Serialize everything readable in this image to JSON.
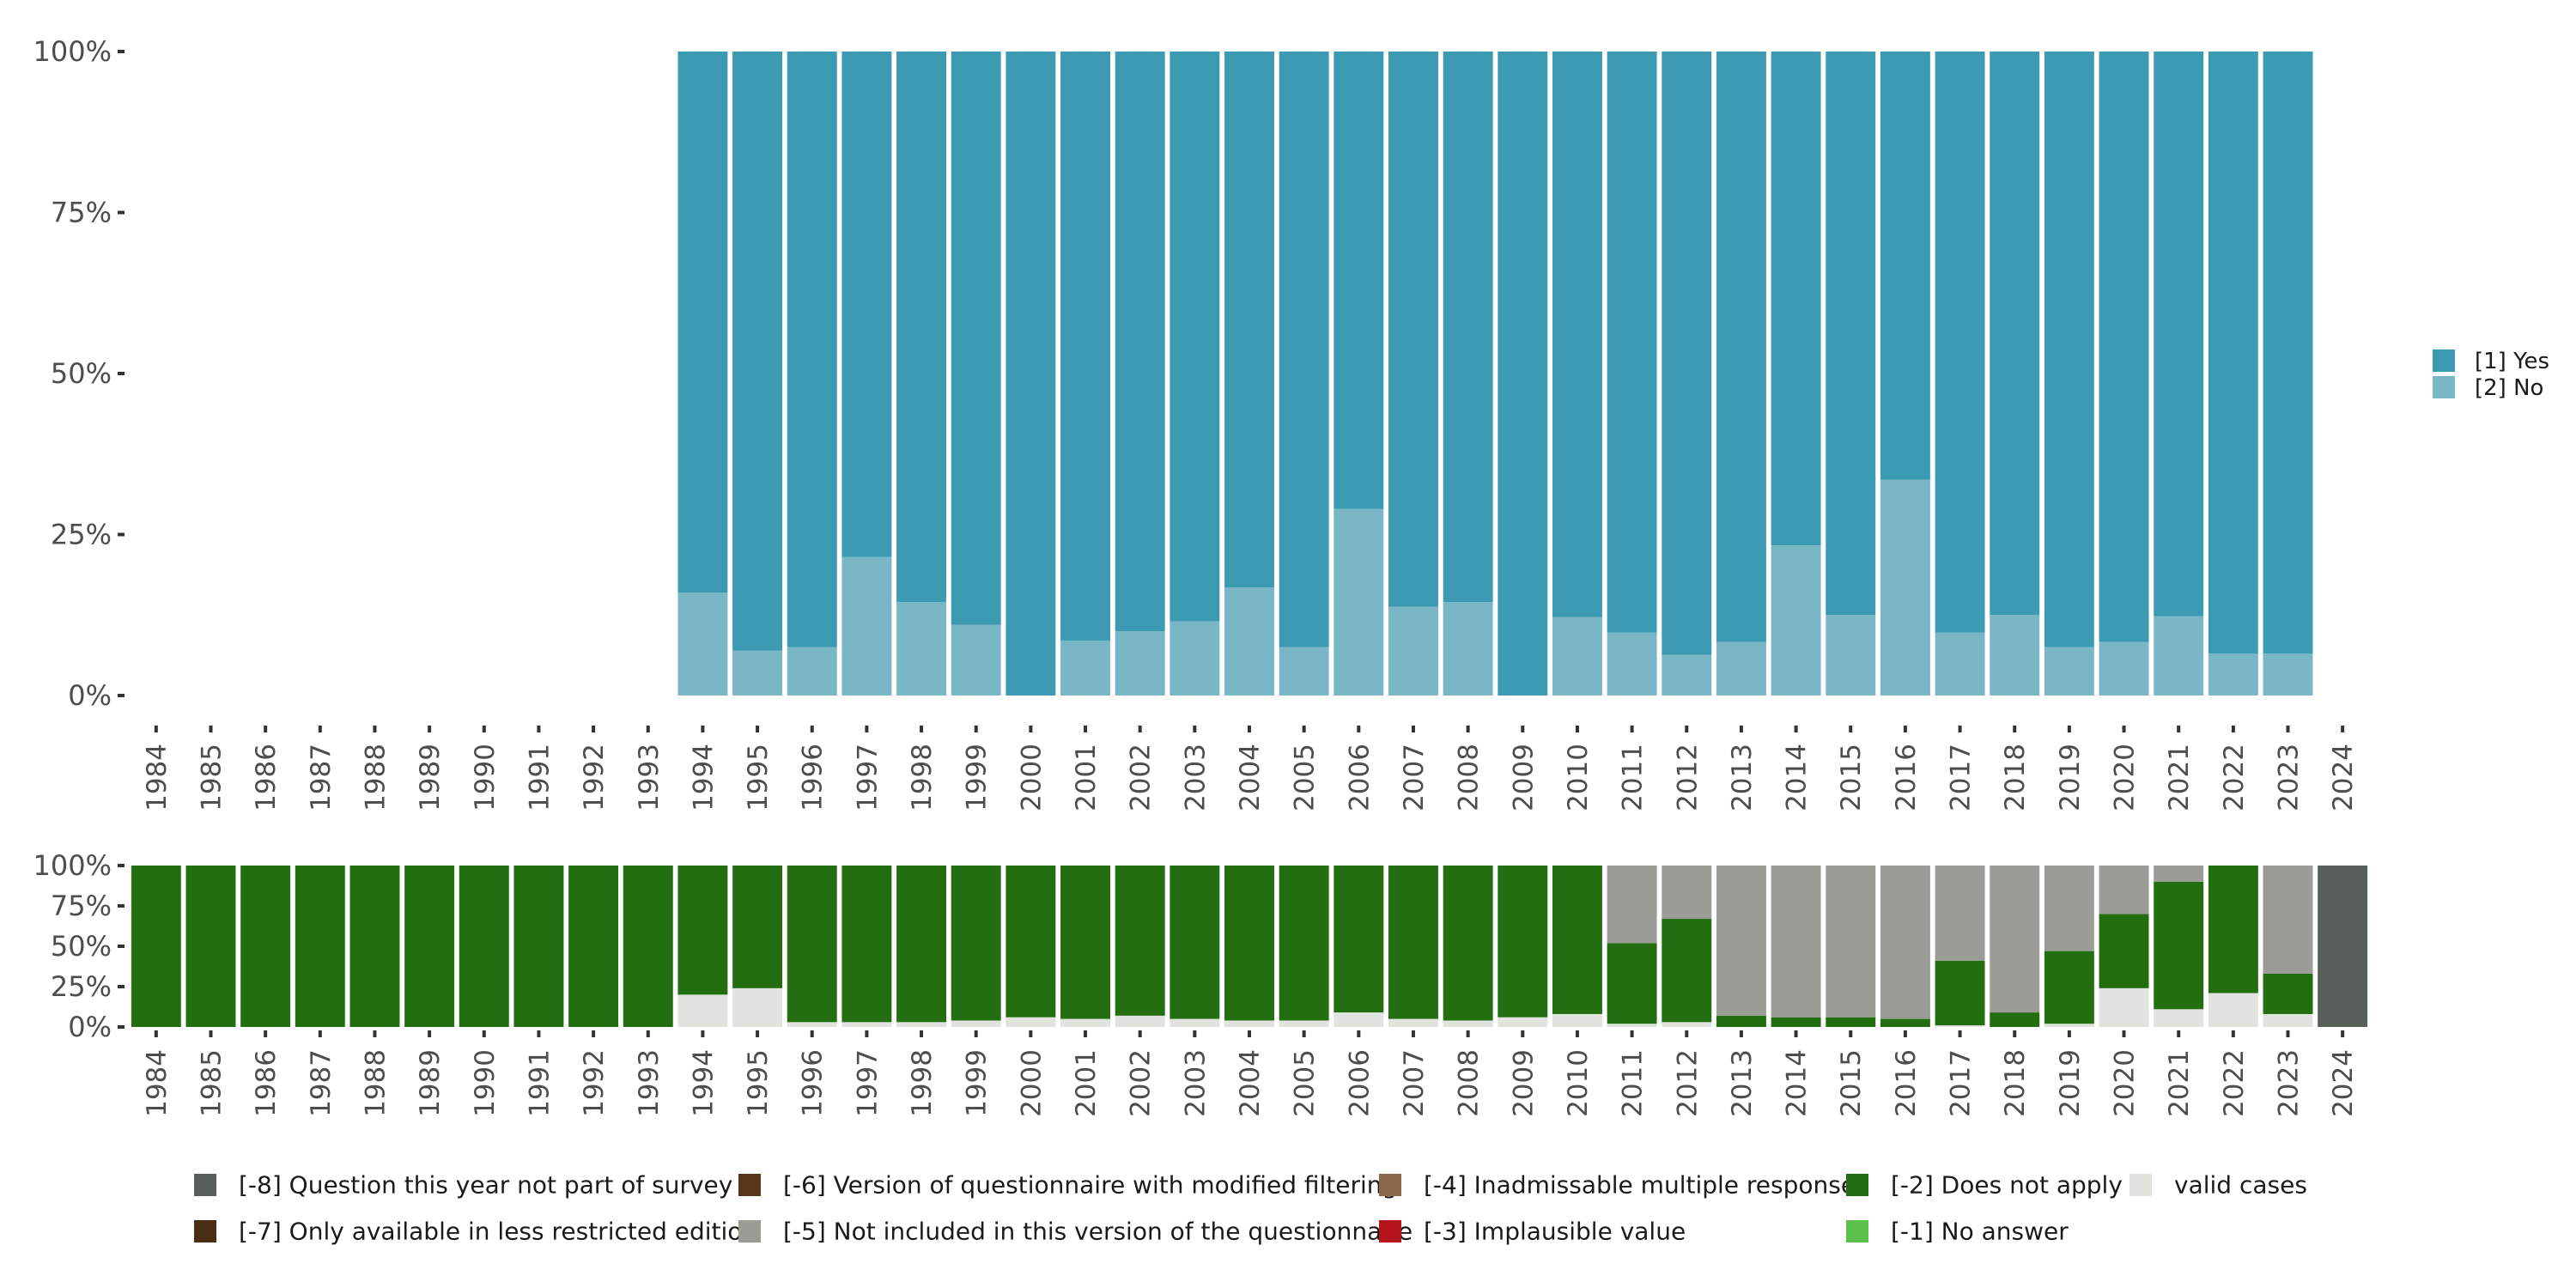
{
  "chart_data": [
    {
      "type": "bar",
      "stacked": true,
      "percent": true,
      "title": "",
      "xlabel": "",
      "ylabel": "",
      "ylim": [
        0,
        100
      ],
      "y_ticks": [
        "0%",
        "25%",
        "50%",
        "75%",
        "100%"
      ],
      "categories": [
        "1984",
        "1985",
        "1986",
        "1987",
        "1988",
        "1989",
        "1990",
        "1991",
        "1992",
        "1993",
        "1994",
        "1995",
        "1996",
        "1997",
        "1998",
        "1999",
        "2000",
        "2001",
        "2002",
        "2003",
        "2004",
        "2005",
        "2006",
        "2007",
        "2008",
        "2009",
        "2010",
        "2011",
        "2012",
        "2013",
        "2014",
        "2015",
        "2016",
        "2017",
        "2018",
        "2019",
        "2020",
        "2021",
        "2022",
        "2023",
        "2024"
      ],
      "series": [
        {
          "name": "[2] No",
          "color": "#79b7c6",
          "values": [
            null,
            null,
            null,
            null,
            null,
            null,
            null,
            null,
            null,
            null,
            16,
            7,
            7.5,
            21.5,
            14.5,
            11,
            0,
            8.5,
            10,
            11.5,
            16.8,
            7.5,
            29,
            13.8,
            14.5,
            0,
            12.2,
            9.8,
            6.3,
            8.3,
            23.3,
            12.5,
            33.5,
            9.8,
            12.5,
            7.5,
            8.3,
            12.3,
            6.5,
            6.5,
            null
          ]
        },
        {
          "name": "[1] Yes",
          "color": "#3d9ab3",
          "values": [
            null,
            null,
            null,
            null,
            null,
            null,
            null,
            null,
            null,
            null,
            84,
            93,
            92.5,
            78.5,
            85.5,
            89,
            100,
            91.5,
            90,
            88.5,
            83.2,
            92.5,
            71,
            86.2,
            85.5,
            100,
            87.8,
            90.2,
            93.7,
            91.7,
            76.7,
            87.5,
            66.5,
            90.2,
            87.5,
            92.5,
            91.7,
            87.7,
            93.5,
            93.5,
            null
          ]
        }
      ],
      "legend": {
        "position": "right",
        "entries": [
          "[1] Yes",
          "[2] No"
        ]
      }
    },
    {
      "type": "bar",
      "stacked": true,
      "percent": true,
      "title": "",
      "xlabel": "",
      "ylabel": "",
      "ylim": [
        0,
        100
      ],
      "y_ticks": [
        "0%",
        "25%",
        "50%",
        "75%",
        "100%"
      ],
      "categories": [
        "1984",
        "1985",
        "1986",
        "1987",
        "1988",
        "1989",
        "1990",
        "1991",
        "1992",
        "1993",
        "1994",
        "1995",
        "1996",
        "1997",
        "1998",
        "1999",
        "2000",
        "2001",
        "2002",
        "2003",
        "2004",
        "2005",
        "2006",
        "2007",
        "2008",
        "2009",
        "2010",
        "2011",
        "2012",
        "2013",
        "2014",
        "2015",
        "2016",
        "2017",
        "2018",
        "2019",
        "2020",
        "2021",
        "2022",
        "2023",
        "2024"
      ],
      "series": [
        {
          "name": "valid cases",
          "color": "#e0e3de",
          "values": [
            0,
            0,
            0,
            0,
            0,
            0,
            0,
            0,
            0,
            0,
            20,
            24,
            3,
            3,
            3,
            4,
            6,
            5,
            7,
            5,
            4,
            4,
            9,
            5,
            4,
            6,
            8,
            2,
            3,
            0,
            0,
            0,
            0,
            1,
            0,
            2,
            24,
            11,
            21,
            8,
            0
          ]
        },
        {
          "name": "[-2] Does not apply",
          "color": "#226e10",
          "values": [
            100,
            100,
            100,
            100,
            100,
            100,
            100,
            100,
            100,
            100,
            80,
            76,
            97,
            97,
            97,
            96,
            94,
            95,
            93,
            95,
            96,
            96,
            91,
            95,
            96,
            94,
            92,
            50,
            64,
            7,
            6,
            6,
            5,
            40,
            9,
            45,
            46,
            79,
            79,
            25,
            0
          ]
        },
        {
          "name": "[-5] Not included in this version of the questionnaire",
          "color": "#9a9c95",
          "values": [
            0,
            0,
            0,
            0,
            0,
            0,
            0,
            0,
            0,
            0,
            0,
            0,
            0,
            0,
            0,
            0,
            0,
            0,
            0,
            0,
            0,
            0,
            0,
            0,
            0,
            0,
            0,
            48,
            33,
            93,
            94,
            94,
            95,
            59,
            91,
            53,
            30,
            10,
            0,
            67,
            0
          ]
        },
        {
          "name": "[-8] Question this year not part of survey",
          "color": "#585e58",
          "values": [
            0,
            0,
            0,
            0,
            0,
            0,
            0,
            0,
            0,
            0,
            0,
            0,
            0,
            0,
            0,
            0,
            0,
            0,
            0,
            0,
            0,
            0,
            0,
            0,
            0,
            0,
            0,
            0,
            0,
            0,
            0,
            0,
            0,
            0,
            0,
            0,
            0,
            0,
            0,
            0,
            100
          ]
        }
      ]
    }
  ],
  "legend_bottom": [
    {
      "label": "[-8] Question this year not part of survey",
      "color": "#585e58"
    },
    {
      "label": "[-6] Version of questionnaire with modified filtering",
      "color": "#5a3416"
    },
    {
      "label": "[-4] Inadmissable multiple response",
      "color": "#8b6a4c"
    },
    {
      "label": "[-2] Does not apply",
      "color": "#226e10"
    },
    {
      "label": "valid cases",
      "color": "#e0e3de"
    },
    {
      "label": "[-7] Only available in less restricted edition",
      "color": "#4a2e14"
    },
    {
      "label": "[-5] Not included in this version of the questionnaire",
      "color": "#9a9c95"
    },
    {
      "label": "[-3] Implausible value",
      "color": "#b3141b"
    },
    {
      "label": "[-1] No answer",
      "color": "#5bc14a"
    }
  ]
}
